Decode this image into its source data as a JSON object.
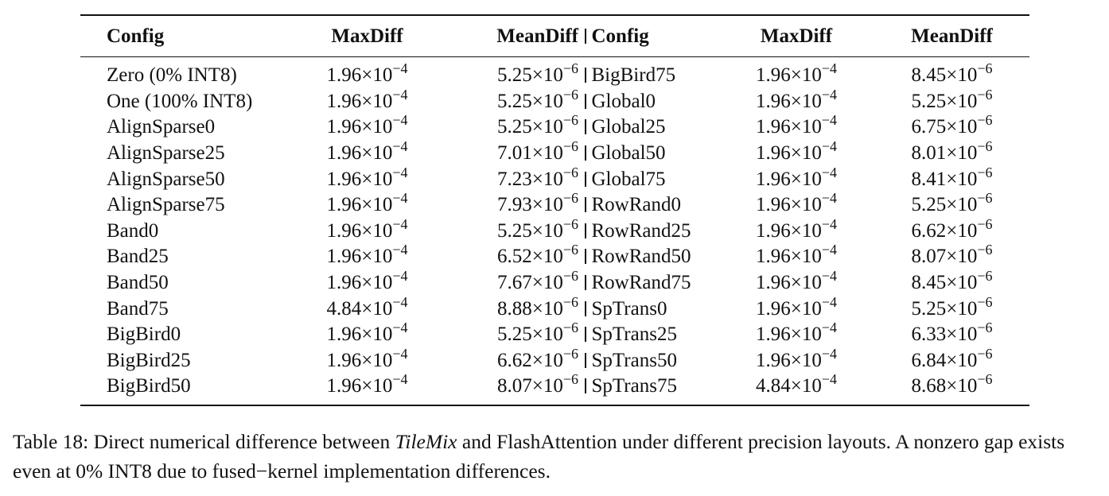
{
  "table": {
    "headers": [
      "Config",
      "MaxDiff",
      "MeanDiff",
      "Config",
      "MaxDiff",
      "MeanDiff"
    ],
    "separator": "|",
    "rows": [
      {
        "left_config": "Zero (0% INT8)",
        "left_max": [
          "1.96",
          "-4"
        ],
        "left_mean": [
          "5.25",
          "-6"
        ],
        "right_config": "BigBird75",
        "right_max": [
          "1.96",
          "-4"
        ],
        "right_mean": [
          "8.45",
          "-6"
        ]
      },
      {
        "left_config": "One (100% INT8)",
        "left_max": [
          "1.96",
          "-4"
        ],
        "left_mean": [
          "5.25",
          "-6"
        ],
        "right_config": "Global0",
        "right_max": [
          "1.96",
          "-4"
        ],
        "right_mean": [
          "5.25",
          "-6"
        ]
      },
      {
        "left_config": "AlignSparse0",
        "left_max": [
          "1.96",
          "-4"
        ],
        "left_mean": [
          "5.25",
          "-6"
        ],
        "right_config": "Global25",
        "right_max": [
          "1.96",
          "-4"
        ],
        "right_mean": [
          "6.75",
          "-6"
        ]
      },
      {
        "left_config": "AlignSparse25",
        "left_max": [
          "1.96",
          "-4"
        ],
        "left_mean": [
          "7.01",
          "-6"
        ],
        "right_config": "Global50",
        "right_max": [
          "1.96",
          "-4"
        ],
        "right_mean": [
          "8.01",
          "-6"
        ]
      },
      {
        "left_config": "AlignSparse50",
        "left_max": [
          "1.96",
          "-4"
        ],
        "left_mean": [
          "7.23",
          "-6"
        ],
        "right_config": "Global75",
        "right_max": [
          "1.96",
          "-4"
        ],
        "right_mean": [
          "8.41",
          "-6"
        ]
      },
      {
        "left_config": "AlignSparse75",
        "left_max": [
          "1.96",
          "-4"
        ],
        "left_mean": [
          "7.93",
          "-6"
        ],
        "right_config": "RowRand0",
        "right_max": [
          "1.96",
          "-4"
        ],
        "right_mean": [
          "5.25",
          "-6"
        ]
      },
      {
        "left_config": "Band0",
        "left_max": [
          "1.96",
          "-4"
        ],
        "left_mean": [
          "5.25",
          "-6"
        ],
        "right_config": "RowRand25",
        "right_max": [
          "1.96",
          "-4"
        ],
        "right_mean": [
          "6.62",
          "-6"
        ]
      },
      {
        "left_config": "Band25",
        "left_max": [
          "1.96",
          "-4"
        ],
        "left_mean": [
          "6.52",
          "-6"
        ],
        "right_config": "RowRand50",
        "right_max": [
          "1.96",
          "-4"
        ],
        "right_mean": [
          "8.07",
          "-6"
        ]
      },
      {
        "left_config": "Band50",
        "left_max": [
          "1.96",
          "-4"
        ],
        "left_mean": [
          "7.67",
          "-6"
        ],
        "right_config": "RowRand75",
        "right_max": [
          "1.96",
          "-4"
        ],
        "right_mean": [
          "8.45",
          "-6"
        ]
      },
      {
        "left_config": "Band75",
        "left_max": [
          "4.84",
          "-4"
        ],
        "left_mean": [
          "8.88",
          "-6"
        ],
        "right_config": "SpTrans0",
        "right_max": [
          "1.96",
          "-4"
        ],
        "right_mean": [
          "5.25",
          "-6"
        ]
      },
      {
        "left_config": "BigBird0",
        "left_max": [
          "1.96",
          "-4"
        ],
        "left_mean": [
          "5.25",
          "-6"
        ],
        "right_config": "SpTrans25",
        "right_max": [
          "1.96",
          "-4"
        ],
        "right_mean": [
          "6.33",
          "-6"
        ]
      },
      {
        "left_config": "BigBird25",
        "left_max": [
          "1.96",
          "-4"
        ],
        "left_mean": [
          "6.62",
          "-6"
        ],
        "right_config": "SpTrans50",
        "right_max": [
          "1.96",
          "-4"
        ],
        "right_mean": [
          "6.84",
          "-6"
        ]
      },
      {
        "left_config": "BigBird50",
        "left_max": [
          "1.96",
          "-4"
        ],
        "left_mean": [
          "8.07",
          "-6"
        ],
        "right_config": "SpTrans75",
        "right_max": [
          "4.84",
          "-4"
        ],
        "right_mean": [
          "8.68",
          "-6"
        ]
      }
    ]
  },
  "caption": {
    "prefix": "Table 18: Direct numerical difference between ",
    "method": "TileMix",
    "suffix": " and FlashAttention under different precision layouts. A nonzero gap exists even at 0% INT8 due to fused-kernel implementation differences."
  }
}
